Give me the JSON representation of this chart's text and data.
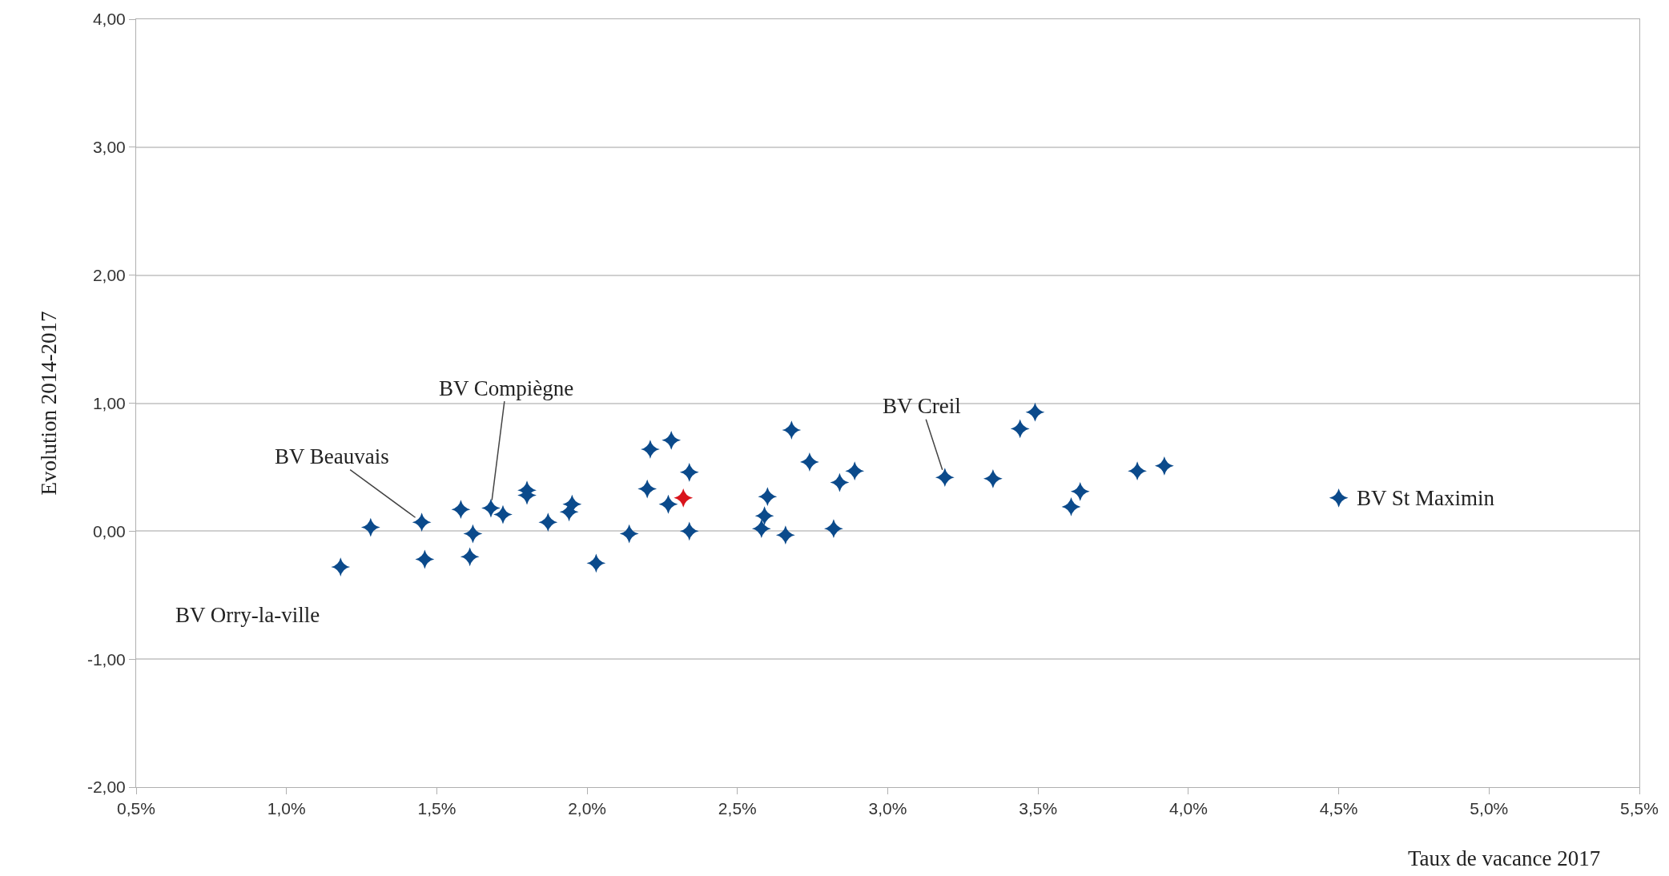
{
  "chart_data": {
    "type": "scatter",
    "xlabel": "Taux de vacance 2017",
    "ylabel": "Evolution 2014-2017",
    "series": [
      {
        "color": "#0b4a8b",
        "x": [
          1.18,
          1.28,
          1.45,
          1.46,
          1.58,
          1.61,
          1.62,
          1.68,
          1.72,
          1.8,
          1.8,
          1.87,
          1.94,
          1.95,
          2.03,
          2.14,
          2.2,
          2.21,
          2.27,
          2.28,
          2.34,
          2.34,
          2.58,
          2.59,
          2.6,
          2.66,
          2.68,
          2.74,
          2.82,
          2.84,
          2.89,
          3.19,
          3.35,
          3.44,
          3.49,
          3.61,
          3.64,
          3.83,
          3.92,
          4.5
        ],
        "values": [
          -0.28,
          0.03,
          0.07,
          -0.22,
          0.17,
          -0.2,
          -0.02,
          0.18,
          0.13,
          0.32,
          0.28,
          0.07,
          0.15,
          0.21,
          -0.25,
          -0.02,
          0.33,
          0.64,
          0.21,
          0.71,
          0.46,
          0.0,
          0.02,
          0.12,
          0.27,
          -0.03,
          0.79,
          0.54,
          0.02,
          0.38,
          0.47,
          0.42,
          0.41,
          0.8,
          0.93,
          0.19,
          0.31,
          0.47,
          0.51,
          0.26
        ]
      },
      {
        "color": "#d9141c",
        "x": [
          2.32
        ],
        "values": [
          0.26
        ]
      }
    ],
    "annotations": [
      {
        "text": "BV Orry-la-ville",
        "x": 1.18,
        "y": -0.28
      },
      {
        "text": "BV Beauvais",
        "x": 1.45,
        "y": 0.07
      },
      {
        "text": "BV Compiègne",
        "x": 1.68,
        "y": 0.18
      },
      {
        "text": "BV Creil",
        "x": 3.19,
        "y": 0.42
      },
      {
        "text": "BV St Maximin",
        "x": 4.5,
        "y": 0.26
      }
    ],
    "xlim": [
      0.5,
      5.5
    ],
    "xticks": [
      {
        "value": 0.5,
        "label": "0,5%"
      },
      {
        "value": 1.0,
        "label": "1,0%"
      },
      {
        "value": 1.5,
        "label": "1,5%"
      },
      {
        "value": 2.0,
        "label": "2,0%"
      },
      {
        "value": 2.5,
        "label": "2,5%"
      },
      {
        "value": 3.0,
        "label": "3,0%"
      },
      {
        "value": 3.5,
        "label": "3,5%"
      },
      {
        "value": 4.0,
        "label": "4,0%"
      },
      {
        "value": 4.5,
        "label": "4,5%"
      },
      {
        "value": 5.0,
        "label": "5,0%"
      },
      {
        "value": 5.5,
        "label": "5,5%"
      }
    ],
    "ylim": [
      -2,
      4
    ],
    "yticks": [
      {
        "value": -2,
        "label": "-2,00"
      },
      {
        "value": -1,
        "label": "-1,00"
      },
      {
        "value": 0,
        "label": "0,00"
      },
      {
        "value": 1,
        "label": "1,00"
      },
      {
        "value": 2,
        "label": "2,00"
      },
      {
        "value": 3,
        "label": "3,00"
      },
      {
        "value": 4,
        "label": "4,00"
      }
    ],
    "grid": "y",
    "marker": "star"
  }
}
